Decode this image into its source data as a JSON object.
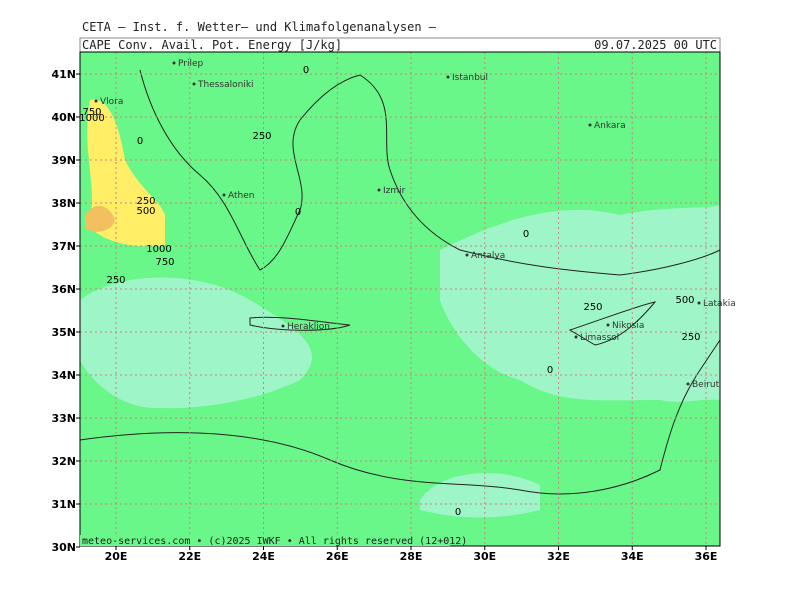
{
  "header": {
    "source": "CETA — Inst. f. Wetter— und Klimafolgenanalysen —",
    "variable": "CAPE Conv. Avail. Pot. Energy [J/kg]",
    "date": "09.07.2025 00 UTC"
  },
  "footer": "meteo-services.com • (c)2025 IWKF • All rights reserved (12+012)",
  "axes": {
    "lat": [
      "41N",
      "40N",
      "39N",
      "38N",
      "37N",
      "36N",
      "35N",
      "34N",
      "33N",
      "32N",
      "31N",
      "30N"
    ],
    "lon": [
      "20E",
      "22E",
      "24E",
      "26E",
      "28E",
      "30E",
      "32E",
      "34E",
      "36E"
    ]
  },
  "places": [
    "Prilep",
    "Thessaloniki",
    "Vlora",
    "Athen",
    "Izmir",
    "Istanbul",
    "Ankara",
    "Antalya",
    "Heraklion",
    "Nikosia",
    "Limassol",
    "Latakia",
    "Beirut"
  ],
  "contour_labels": [
    "0",
    "750",
    "1000",
    "0",
    "250",
    "250",
    "500",
    "0",
    "1000",
    "750",
    "250",
    "0",
    "250",
    "500",
    "250",
    "0",
    "0"
  ]
}
